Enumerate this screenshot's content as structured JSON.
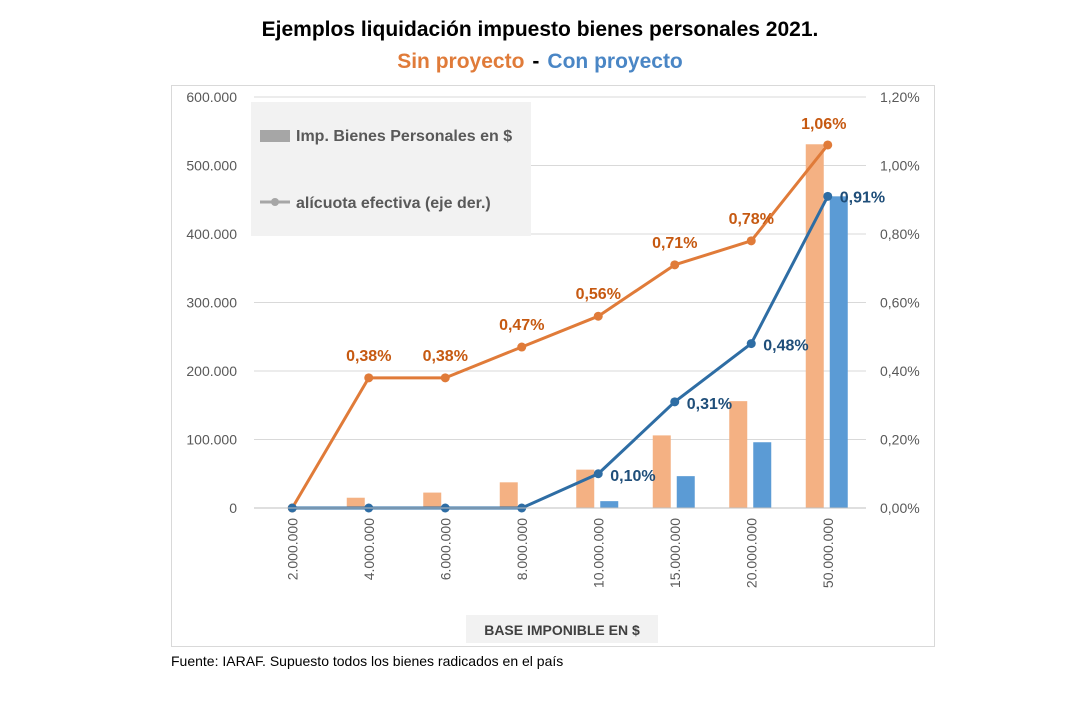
{
  "title": "Ejemplos liquidación impuesto bienes personales 2021.",
  "subtitle": {
    "sin": "Sin proyecto",
    "separator": "-",
    "con": "Con proyecto"
  },
  "source": "Fuente: IARAF. Supuesto todos los bienes radicados en el país",
  "colors": {
    "sin_bar": "#F4B183",
    "con_bar": "#5B9BD5",
    "sin_line": "#E07B39",
    "con_line": "#2E6DA4",
    "sin_label": "#C65911",
    "con_label": "#1F4E79",
    "legend_bg": "#F2F2F2",
    "legend_mark": "#A6A6A6",
    "grid": "#D9D9D9"
  },
  "chart_data": {
    "type": "bar",
    "combo": "bar+line",
    "categories": [
      "2.000.000",
      "4.000.000",
      "6.000.000",
      "8.000.000",
      "10.000.000",
      "15.000.000",
      "20.000.000",
      "50.000.000"
    ],
    "series": [
      {
        "axis": "left",
        "kind": "bar",
        "group": "sin",
        "values": [
          0,
          15000,
          22500,
          37500,
          56000,
          106000,
          156000,
          531000
        ]
      },
      {
        "axis": "left",
        "kind": "bar",
        "group": "con",
        "values": [
          0,
          0,
          0,
          0,
          10000,
          46500,
          96000,
          455000
        ]
      },
      {
        "axis": "right",
        "kind": "line",
        "group": "sin",
        "values": [
          0.0,
          0.38,
          0.38,
          0.47,
          0.56,
          0.71,
          0.78,
          1.06
        ],
        "labels": [
          "",
          "0,38%",
          "0,38%",
          "0,47%",
          "0,56%",
          "0,71%",
          "0,78%",
          "1,06%"
        ]
      },
      {
        "axis": "right",
        "kind": "line",
        "group": "con",
        "values": [
          0.0,
          0.0,
          0.0,
          0.0,
          0.1,
          0.31,
          0.48,
          0.91
        ],
        "labels": [
          "",
          "",
          "",
          "",
          "0,10%",
          "0,31%",
          "0,48%",
          "0,91%"
        ]
      }
    ],
    "legend": [
      {
        "label": "Imp. Bienes Personales en $",
        "kind": "bar"
      },
      {
        "label": "alícuota efectiva (eje der.)",
        "kind": "line"
      }
    ],
    "legend_position": "top-left",
    "xlabel": "BASE IMPONIBLE EN $",
    "ylabel": "",
    "y_left": {
      "lim": [
        0,
        600000
      ],
      "ticks": [
        0,
        100000,
        200000,
        300000,
        400000,
        500000,
        600000
      ],
      "tick_labels": [
        "0",
        "100.000",
        "200.000",
        "300.000",
        "400.000",
        "500.000",
        "600.000"
      ]
    },
    "y_right": {
      "lim": [
        0,
        1.2
      ],
      "ticks": [
        0,
        0.2,
        0.4,
        0.6,
        0.8,
        1.0,
        1.2
      ],
      "tick_labels": [
        "0,00%",
        "0,20%",
        "0,40%",
        "0,60%",
        "0,80%",
        "1,00%",
        "1,20%"
      ]
    },
    "grid": true
  }
}
